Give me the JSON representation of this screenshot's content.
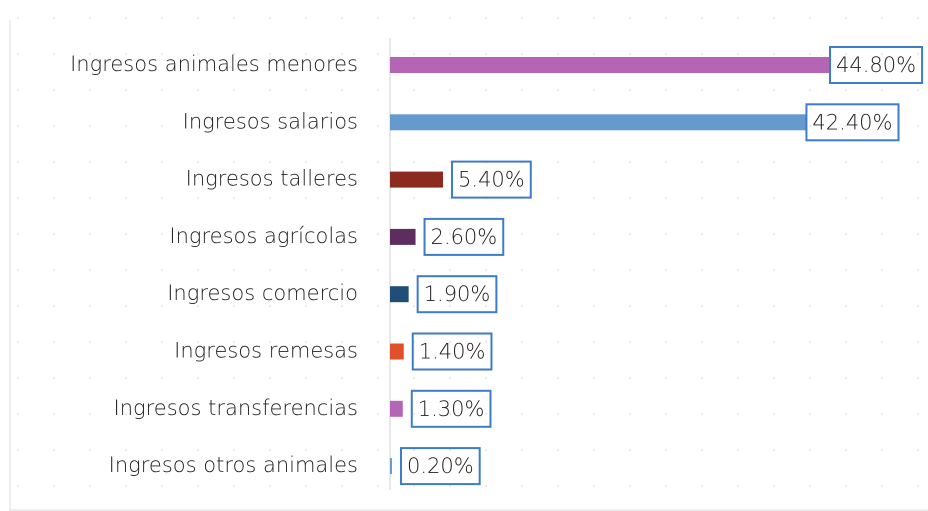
{
  "chart_data": {
    "type": "bar",
    "orientation": "horizontal",
    "categories": [
      "Ingresos animales menores",
      "Ingresos salarios",
      "Ingresos talleres",
      "Ingresos agrícolas",
      "Ingresos comercio",
      "Ingresos remesas",
      "Ingresos transferencias",
      "Ingresos otros animales"
    ],
    "values": [
      44.8,
      42.4,
      5.4,
      2.6,
      1.9,
      1.4,
      1.3,
      0.2
    ],
    "value_labels": [
      "44.80%",
      "42.40%",
      "5.40%",
      "2.60%",
      "1.90%",
      "1.40%",
      "1.30%",
      "0.20%"
    ],
    "colors": [
      "#b565b5",
      "#6699cc",
      "#8b2a1e",
      "#5c2d5e",
      "#1f4e79",
      "#e0502a",
      "#b565b5",
      "#6699cc"
    ]
  }
}
